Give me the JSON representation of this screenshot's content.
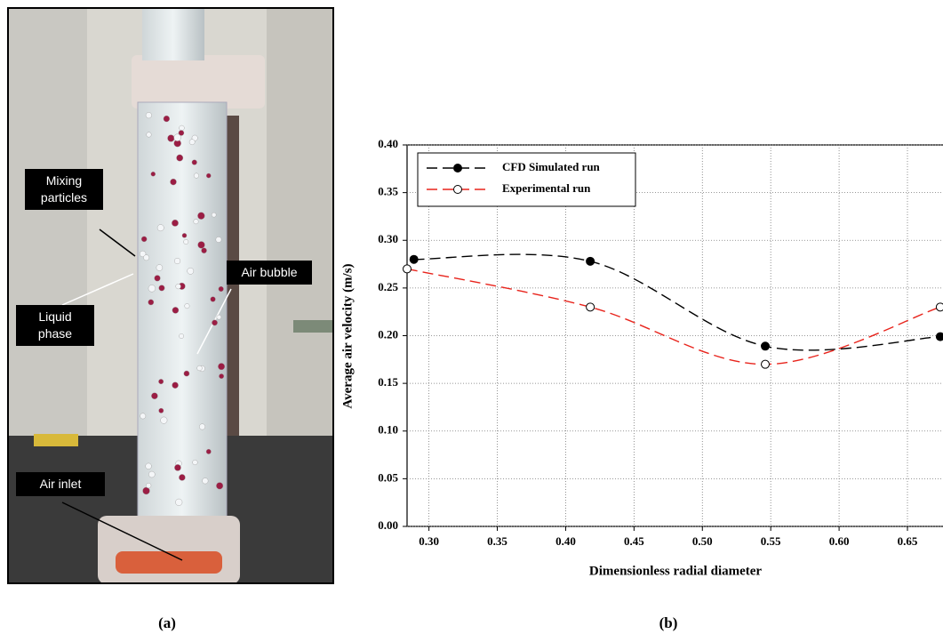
{
  "photo": {
    "labels": [
      "Mixing particles",
      "Liquid phase",
      "Air bubble",
      "Air inlet"
    ],
    "caption": "(a)"
  },
  "chart_data": {
    "type": "line",
    "caption": "(b)",
    "xlabel": "Dimensionless radial diameter",
    "ylabel": "Average air velocity (m/s)",
    "xlim": [
      0.284,
      0.676
    ],
    "ylim": [
      0,
      0.4
    ],
    "xticks": [
      {
        "value": 0.3,
        "label": "0.30"
      },
      0.35,
      {
        "value": 0.4,
        "label": "0.40"
      },
      0.45,
      {
        "value": 0.5,
        "label": "0.50"
      },
      0.55,
      {
        "value": 0.6,
        "label": "0.60"
      },
      0.65
    ],
    "yticks": [
      {
        "value": 0,
        "label": "0.00"
      },
      0.05,
      {
        "value": 0.1,
        "label": "0.10"
      },
      0.15,
      {
        "value": 0.2,
        "label": "0.20"
      },
      0.25,
      {
        "value": 0.3,
        "label": "0.30"
      },
      0.35,
      {
        "value": 0.4,
        "label": "0.40"
      }
    ],
    "grid": true,
    "legend": "top-left",
    "series": [
      {
        "name": "CFD Simulated run",
        "color": "#000000",
        "marker": "filled",
        "x": [
          0.289,
          0.418,
          0.546,
          0.674
        ],
        "values": [
          0.28,
          0.278,
          0.189,
          0.199
        ]
      },
      {
        "name": "Experimental run",
        "color": "#e8241c",
        "marker": "open",
        "x": [
          0.284,
          0.418,
          0.546,
          0.674
        ],
        "values": [
          0.27,
          0.23,
          0.17,
          0.23
        ]
      }
    ]
  }
}
